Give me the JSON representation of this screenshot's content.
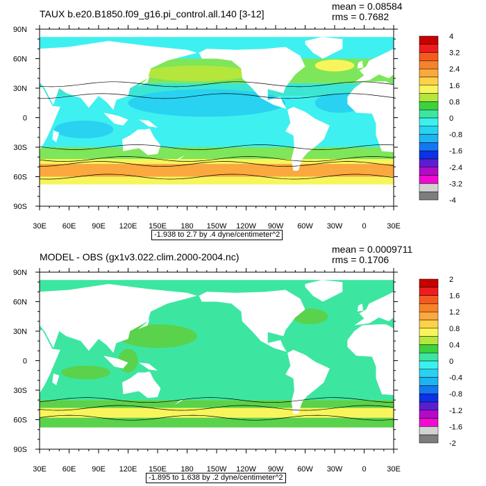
{
  "panels": [
    {
      "title": "TAUX b.e20.B1850.f09_g16.pi_control.all.140 [3-12]",
      "mean": "mean = 0.08584",
      "rms": "rms = 0.7682",
      "range_text": "-1.938 to 2.7 by .4 dyne/centimeter^2",
      "lon_ticks": [
        "30E",
        "60E",
        "90E",
        "120E",
        "150E",
        "180",
        "150W",
        "120W",
        "90W",
        "60W",
        "30W",
        "0",
        "30E"
      ],
      "lat_ticks": [
        "90N",
        "60N",
        "30N",
        "0",
        "30S",
        "60S",
        "90S"
      ],
      "colorbar_labels": [
        "4",
        "3.2",
        "2.4",
        "1.6",
        "0.8",
        "0",
        "-0.8",
        "-1.6",
        "-2.4",
        "-3.2",
        "-4"
      ],
      "colorbar_colors": [
        "#c80000",
        "#ee1c1c",
        "#f45a1e",
        "#f8822a",
        "#fba83e",
        "#fdd248",
        "#f7f55b",
        "#b4e63c",
        "#3cd23c",
        "#3ce6a0",
        "#3cf0f0",
        "#28d2f0",
        "#1eb4f0",
        "#1478f0",
        "#0a32e6",
        "#5a1ed2",
        "#b40ac8",
        "#f00ad2",
        "#d2d2d2",
        "#7d7d7d"
      ]
    },
    {
      "title": "MODEL - OBS (gx1v3.022.clim.2000-2004.nc)",
      "mean": "mean = 0.0009711",
      "rms": "rms = 0.1706",
      "range_text": "-1.895 to 1.638 by .2 dyne/centimeter^2",
      "lon_ticks": [
        "30E",
        "60E",
        "90E",
        "120E",
        "150E",
        "180",
        "150W",
        "120W",
        "90W",
        "60W",
        "30W",
        "0",
        "30E"
      ],
      "lat_ticks": [
        "90N",
        "60N",
        "30N",
        "0",
        "30S",
        "60S",
        "90S"
      ],
      "colorbar_labels": [
        "2",
        "1.6",
        "1.2",
        "0.8",
        "0.4",
        "0",
        "-0.4",
        "-0.8",
        "-1.2",
        "-1.6",
        "-2"
      ],
      "colorbar_colors": [
        "#c80000",
        "#ee1c1c",
        "#f45a1e",
        "#f8822a",
        "#fba83e",
        "#fdd248",
        "#f7f55b",
        "#b4e63c",
        "#3cd23c",
        "#3ce6a0",
        "#3cf0f0",
        "#28d2f0",
        "#1eb4f0",
        "#1478f0",
        "#0a32e6",
        "#5a1ed2",
        "#b40ac8",
        "#f00ad2",
        "#d2d2d2",
        "#7d7d7d"
      ]
    }
  ],
  "colors": {
    "land": "#ffffff",
    "ocean_trade": "#3ce6d2",
    "ocean_cyan": "#3ef0f0",
    "ocean_blue": "#28d2f0",
    "westerly_green": "#7de65a",
    "westerly_yellow": "#f7f55b",
    "westerly_orange": "#fba83e",
    "diff_main": "#3ce6a0",
    "diff_green": "#5ad24b",
    "diff_yellow": "#f7f55b",
    "contour": "#000000"
  }
}
